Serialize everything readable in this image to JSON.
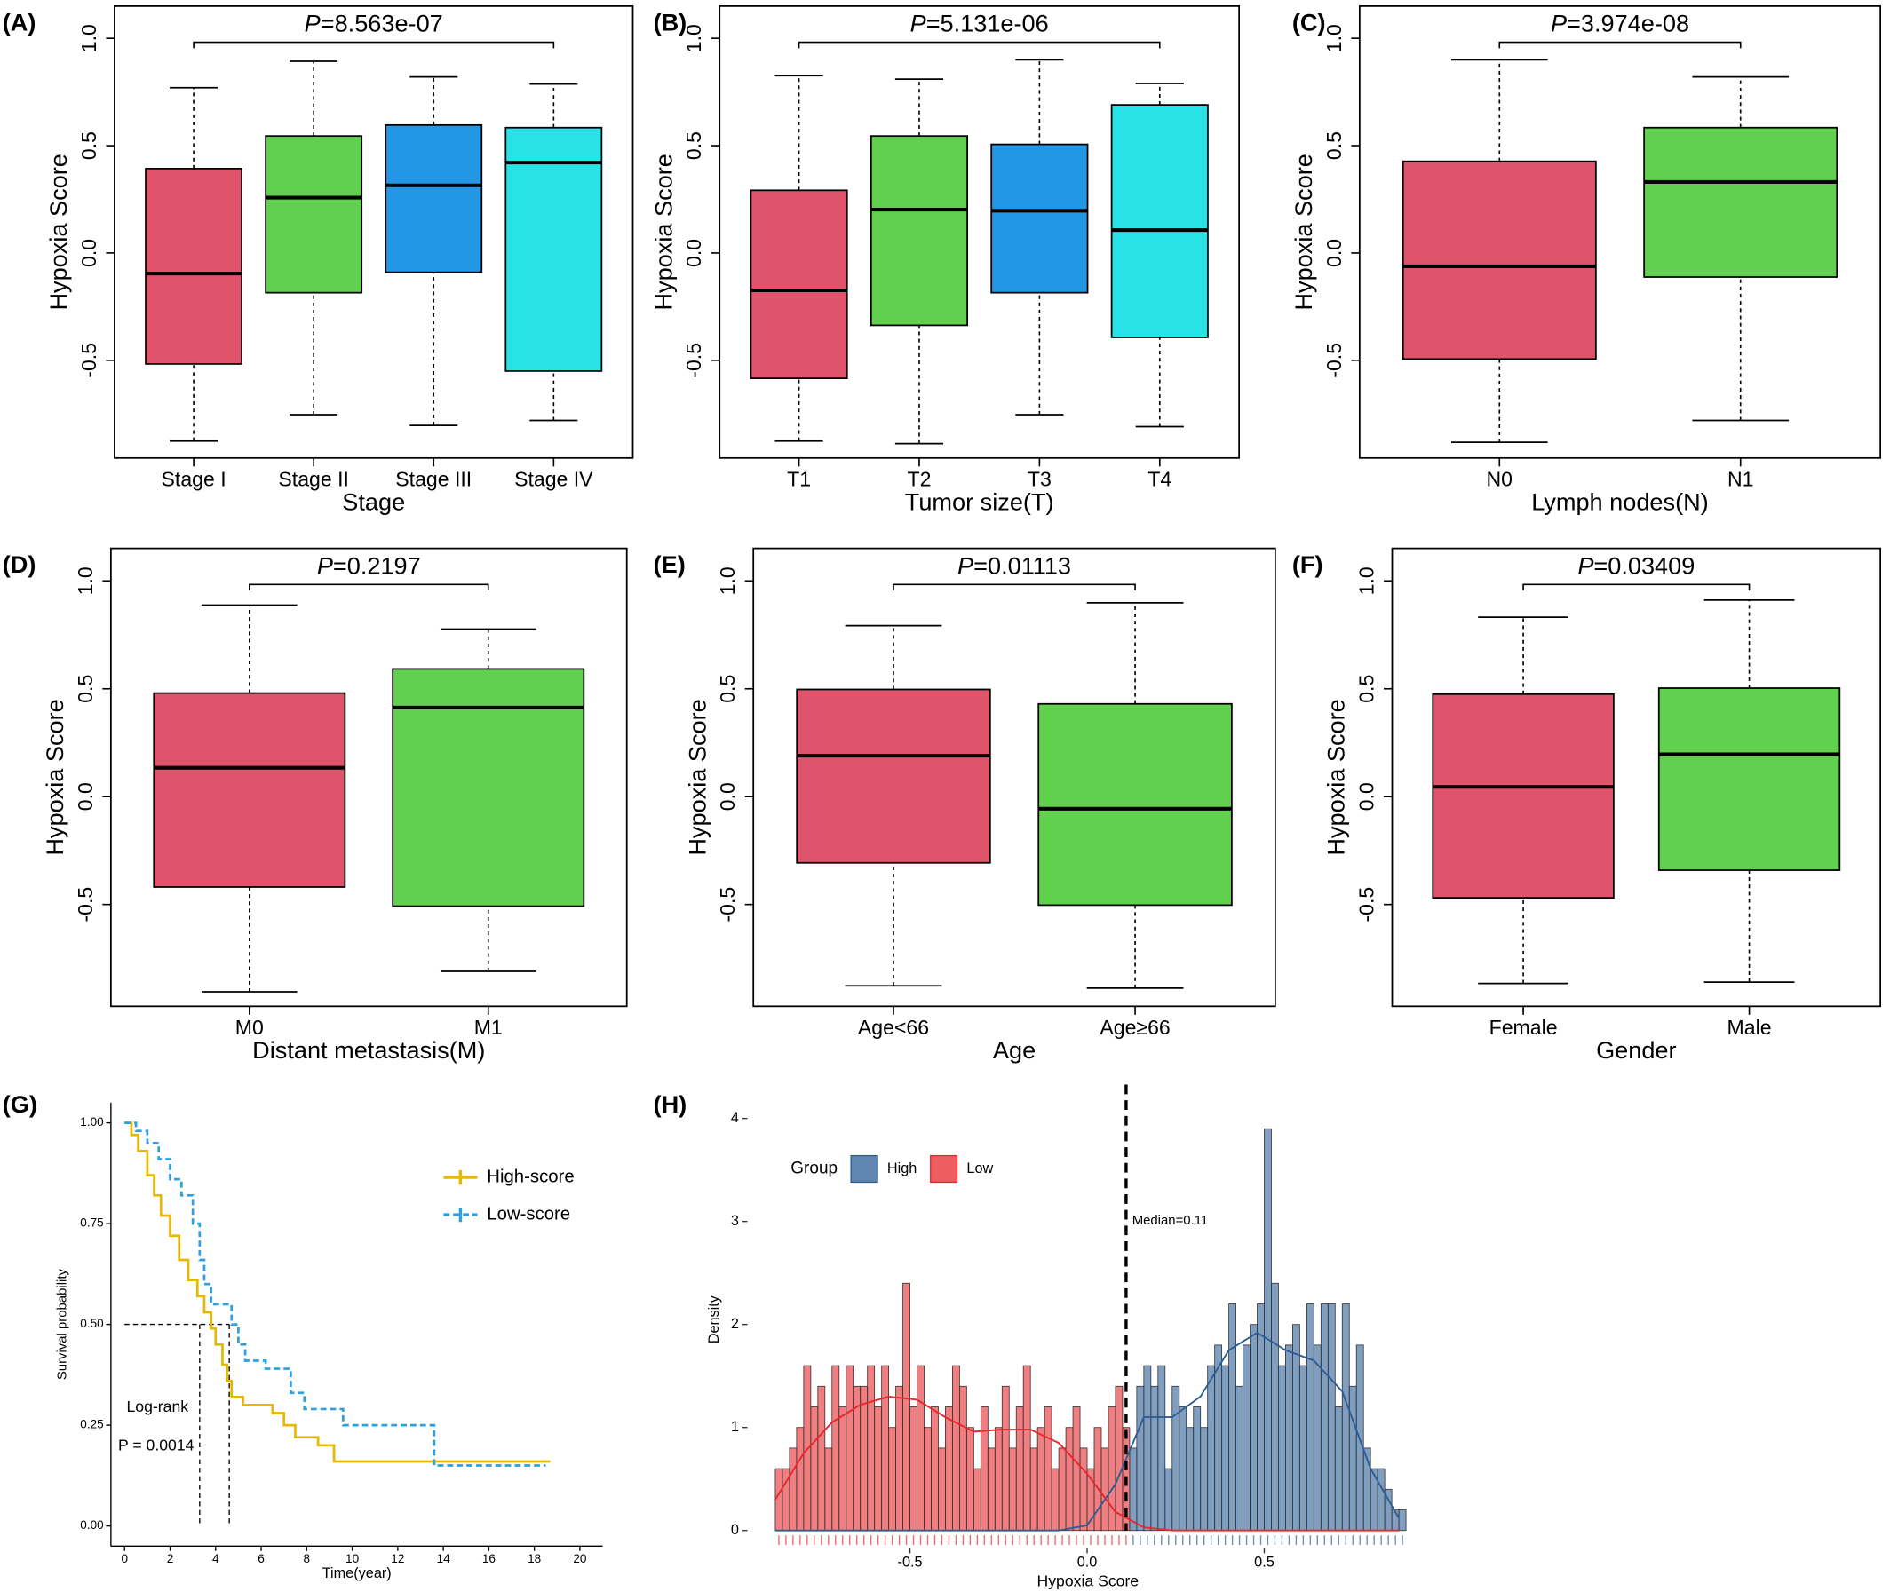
{
  "chart_data": [
    {
      "type": "box",
      "panel": "(A)",
      "ylabel": "Hypoxia Score",
      "xlabel": "Stage",
      "categories": [
        "Stage I",
        "Stage II",
        "Stage III",
        "Stage IV"
      ],
      "colors": [
        "#df536b",
        "#61d04f",
        "#2297e6",
        "#28e2e5"
      ],
      "boxes": [
        {
          "whislo": -0.876,
          "q1": -0.517,
          "med": -0.096,
          "q3": 0.393,
          "whishi": 0.77
        },
        {
          "whislo": -0.753,
          "q1": -0.185,
          "med": 0.258,
          "q3": 0.545,
          "whishi": 0.893
        },
        {
          "whislo": -0.803,
          "q1": -0.09,
          "med": 0.315,
          "q3": 0.596,
          "whishi": 0.82
        },
        {
          "whislo": -0.78,
          "q1": -0.55,
          "med": 0.421,
          "q3": 0.584,
          "whishi": 0.787
        }
      ],
      "ylim": [
        -0.955,
        1.15
      ],
      "yticks": [
        {
          "value": -0.5,
          "label": "-0.5"
        },
        {
          "value": 0,
          "label": "0.0"
        },
        0.5,
        {
          "value": 1,
          "label": "1.0"
        }
      ],
      "p_symbol": "P",
      "p_text": "=8.563e-07"
    },
    {
      "type": "box",
      "panel": "(B)",
      "ylabel": "Hypoxia Score",
      "xlabel": "Tumor size(T)",
      "categories": [
        "T1",
        "T2",
        "T3",
        "T4"
      ],
      "colors": [
        "#df536b",
        "#61d04f",
        "#2297e6",
        "#28e2e5"
      ],
      "boxes": [
        {
          "whislo": -0.876,
          "q1": -0.584,
          "med": -0.174,
          "q3": 0.292,
          "whishi": 0.826
        },
        {
          "whislo": -0.888,
          "q1": -0.337,
          "med": 0.202,
          "q3": 0.545,
          "whishi": 0.81
        },
        {
          "whislo": -0.753,
          "q1": -0.185,
          "med": 0.197,
          "q3": 0.506,
          "whishi": 0.9
        },
        {
          "whislo": -0.809,
          "q1": -0.393,
          "med": 0.107,
          "q3": 0.69,
          "whishi": 0.79
        }
      ],
      "ylim": [
        -0.955,
        1.15
      ],
      "yticks": [
        {
          "value": -0.5,
          "label": "-0.5"
        },
        {
          "value": 0,
          "label": "0.0"
        },
        0.5,
        {
          "value": 1,
          "label": "1.0"
        }
      ],
      "p_symbol": "P",
      "p_text": "=5.131e-06"
    },
    {
      "type": "box",
      "panel": "(C)",
      "ylabel": "Hypoxia Score",
      "xlabel": "Lymph nodes(N)",
      "categories": [
        "N0",
        "N1"
      ],
      "colors": [
        "#df536b",
        "#61d04f"
      ],
      "boxes": [
        {
          "whislo": -0.882,
          "q1": -0.494,
          "med": -0.062,
          "q3": 0.427,
          "whishi": 0.9
        },
        {
          "whislo": -0.78,
          "q1": -0.112,
          "med": 0.331,
          "q3": 0.584,
          "whishi": 0.82
        }
      ],
      "ylim": [
        -0.955,
        1.15
      ],
      "yticks": [
        {
          "value": -0.5,
          "label": "-0.5"
        },
        {
          "value": 0,
          "label": "0.0"
        },
        0.5,
        {
          "value": 1,
          "label": "1.0"
        }
      ],
      "p_symbol": "P",
      "p_text": "=3.974e-08"
    },
    {
      "type": "box",
      "panel": "(D)",
      "ylabel": "Hypoxia Score",
      "xlabel": "Distant metastasis(M)",
      "categories": [
        "M0",
        "M1"
      ],
      "colors": [
        "#df536b",
        "#61d04f"
      ],
      "boxes": [
        {
          "whislo": -0.905,
          "q1": -0.419,
          "med": 0.134,
          "q3": 0.48,
          "whishi": 0.888
        },
        {
          "whislo": -0.81,
          "q1": -0.508,
          "med": 0.413,
          "q3": 0.592,
          "whishi": 0.777
        }
      ],
      "ylim": [
        -0.972,
        1.151
      ],
      "yticks": [
        {
          "value": -0.5,
          "label": "-0.5"
        },
        {
          "value": 0,
          "label": "0.0"
        },
        0.5,
        {
          "value": 1,
          "label": "1.0"
        }
      ],
      "p_symbol": "P",
      "p_text": "=0.2197"
    },
    {
      "type": "box",
      "panel": "(E)",
      "ylabel": "Hypoxia Score",
      "xlabel": "Age",
      "categories": [
        "Age<66",
        "Age≥66"
      ],
      "colors": [
        "#df536b",
        "#61d04f"
      ],
      "boxes": [
        {
          "whislo": -0.877,
          "q1": -0.307,
          "med": 0.19,
          "q3": 0.497,
          "whishi": 0.793
        },
        {
          "whislo": -0.888,
          "q1": -0.503,
          "med": -0.056,
          "q3": 0.43,
          "whishi": 0.899
        }
      ],
      "ylim": [
        -0.972,
        1.151
      ],
      "yticks": [
        {
          "value": -0.5,
          "label": "-0.5"
        },
        {
          "value": 0,
          "label": "0.0"
        },
        0.5,
        {
          "value": 1,
          "label": "1.0"
        }
      ],
      "p_symbol": "P",
      "p_text": "=0.01113"
    },
    {
      "type": "box",
      "panel": "(F)",
      "ylabel": "Hypoxia Score",
      "xlabel": "Gender",
      "categories": [
        "Female",
        "Male"
      ],
      "colors": [
        "#df536b",
        "#61d04f"
      ],
      "boxes": [
        {
          "whislo": -0.866,
          "q1": -0.469,
          "med": 0.045,
          "q3": 0.475,
          "whishi": 0.832
        },
        {
          "whislo": -0.86,
          "q1": -0.341,
          "med": 0.196,
          "q3": 0.503,
          "whishi": 0.911
        }
      ],
      "ylim": [
        -0.972,
        1.151
      ],
      "yticks": [
        {
          "value": -0.5,
          "label": "-0.5"
        },
        {
          "value": 0,
          "label": "0.0"
        },
        0.5,
        {
          "value": 1,
          "label": "1.0"
        }
      ],
      "p_symbol": "P",
      "p_text": "=0.03409"
    },
    {
      "type": "survival",
      "panel": "(G)",
      "xlabel": "Time(year)",
      "ylabel": "Survival probability",
      "xlim": [
        -0.6,
        21
      ],
      "ylim": [
        -0.05,
        1.05
      ],
      "xticks": [
        0,
        2,
        4,
        6,
        8,
        10,
        12,
        14,
        16,
        18,
        20
      ],
      "yticks": [
        {
          "value": 0,
          "label": "0.00"
        },
        {
          "value": 0.25,
          "label": "0.25"
        },
        {
          "value": 0.5,
          "label": "0.50"
        },
        {
          "value": 0.75,
          "label": "0.75"
        },
        {
          "value": 1,
          "label": "1.00"
        }
      ],
      "series": [
        {
          "name": "High-score",
          "color": "#e7b800",
          "linetype": "solid",
          "x": [
            0,
            0.3,
            0.6,
            1,
            1.3,
            1.6,
            2,
            2.4,
            2.8,
            3.2,
            3.5,
            3.8,
            4.0,
            4.3,
            4.5,
            4.7,
            5.2,
            6.5,
            7,
            7.5,
            8.5,
            9.2,
            18.7
          ],
          "values": [
            1,
            0.97,
            0.93,
            0.87,
            0.82,
            0.77,
            0.72,
            0.66,
            0.61,
            0.57,
            0.53,
            0.49,
            0.45,
            0.4,
            0.36,
            0.32,
            0.3,
            0.28,
            0.25,
            0.22,
            0.2,
            0.16,
            0.16
          ]
        },
        {
          "name": "Low-score",
          "color": "#2e9fdf",
          "linetype": "dashed",
          "x": [
            0,
            0.5,
            1,
            1.5,
            2,
            2.5,
            3,
            3.3,
            3.5,
            3.8,
            4.5,
            4.7,
            5,
            5.3,
            6.2,
            7.3,
            7.9,
            9.6,
            13.6,
            18.5
          ],
          "values": [
            1,
            0.98,
            0.95,
            0.91,
            0.86,
            0.82,
            0.75,
            0.66,
            0.6,
            0.55,
            0.55,
            0.5,
            0.45,
            0.41,
            0.39,
            0.33,
            0.29,
            0.25,
            0.15,
            0.15
          ]
        }
      ],
      "median_y": 0.5,
      "median_x": [
        3.3,
        4.6
      ],
      "annotations": [
        "Log-rank",
        "P = 0.0014"
      ]
    },
    {
      "type": "histogram",
      "panel": "(H)",
      "xlabel": "Hypoxia Score",
      "ylabel": "Density",
      "xlim": [
        -0.959,
        0.963
      ],
      "ylim": [
        -0.175,
        4.27
      ],
      "xticks": [
        -0.5,
        {
          "value": 0,
          "label": "0.0"
        },
        0.5
      ],
      "yticks": [
        0,
        1,
        2,
        3,
        4
      ],
      "bins": [
        -0.88,
        -0.86,
        -0.84,
        -0.82,
        -0.8,
        -0.78,
        -0.76,
        -0.74,
        -0.72,
        -0.7,
        -0.68,
        -0.66,
        -0.64,
        -0.62,
        -0.6,
        -0.58,
        -0.56,
        -0.54,
        -0.52,
        -0.5,
        -0.48,
        -0.46,
        -0.44,
        -0.42,
        -0.4,
        -0.38,
        -0.36,
        -0.34,
        -0.32,
        -0.3,
        -0.28,
        -0.26,
        -0.24,
        -0.22,
        -0.2,
        -0.18,
        -0.16,
        -0.14,
        -0.12,
        -0.1,
        -0.08,
        -0.06,
        -0.04,
        -0.02,
        0,
        0.02,
        0.04,
        0.06,
        0.08,
        0.1,
        0.12,
        0.14,
        0.16,
        0.18,
        0.2,
        0.22,
        0.24,
        0.26,
        0.28,
        0.3,
        0.32,
        0.34,
        0.36,
        0.38,
        0.4,
        0.42,
        0.44,
        0.46,
        0.48,
        0.5,
        0.52,
        0.54,
        0.56,
        0.58,
        0.6,
        0.62,
        0.64,
        0.66,
        0.68,
        0.7,
        0.72,
        0.74,
        0.76,
        0.78,
        0.8,
        0.82,
        0.84,
        0.86,
        0.88,
        0.9
      ],
      "values": [
        0.6,
        0.6,
        0.8,
        1.0,
        1.6,
        1.2,
        1.4,
        0.8,
        1.6,
        1.2,
        1.6,
        1.4,
        1.4,
        1.6,
        1.2,
        1.6,
        1.0,
        1.4,
        2.4,
        1.2,
        1.6,
        1.0,
        1.2,
        0.8,
        1.2,
        1.6,
        1.4,
        1.0,
        0.6,
        1.2,
        0.8,
        1.0,
        1.4,
        0.8,
        1.2,
        1.6,
        0.8,
        1.0,
        1.2,
        0.6,
        0.8,
        1.0,
        1.2,
        0.8,
        0.6,
        1.0,
        0.8,
        1.2,
        1.4,
        1.0,
        0.8,
        1.4,
        1.6,
        1.4,
        1.6,
        0.6,
        1.4,
        1.2,
        1.0,
        1.2,
        1.0,
        1.6,
        1.8,
        1.6,
        2.2,
        1.4,
        1.8,
        2.0,
        2.2,
        3.9,
        2.4,
        1.6,
        1.8,
        2.0,
        1.6,
        2.2,
        1.8,
        2.2,
        2.2,
        1.2,
        2.2,
        1.4,
        1.8,
        0.8,
        0.6,
        0.6,
        0.4,
        0.2,
        0.2
      ],
      "median": 0.11,
      "median_label": "Median=0.11",
      "legend_title": "Group",
      "density_x": [
        -0.88,
        -0.8,
        -0.72,
        -0.64,
        -0.56,
        -0.48,
        -0.4,
        -0.32,
        -0.24,
        -0.16,
        -0.08,
        0,
        0.08,
        0.16,
        0.24,
        0.32,
        0.4,
        0.48,
        0.56,
        0.64,
        0.72,
        0.8,
        0.88
      ],
      "groups": [
        {
          "name": "High",
          "color": "#2c5d95",
          "density": [
            0,
            0,
            0,
            0,
            0,
            0,
            0,
            0,
            0,
            0,
            0,
            0.05,
            0.45,
            1.1,
            1.1,
            1.3,
            1.75,
            1.92,
            1.75,
            1.65,
            1.35,
            0.6,
            0.12
          ]
        },
        {
          "name": "Low",
          "color": "#e8282c",
          "density": [
            0.3,
            0.75,
            1.05,
            1.22,
            1.3,
            1.27,
            1.1,
            0.96,
            0.98,
            0.98,
            0.85,
            0.55,
            0.18,
            0.03,
            0,
            0,
            0,
            0,
            0,
            0,
            0,
            0,
            0
          ]
        }
      ]
    }
  ]
}
